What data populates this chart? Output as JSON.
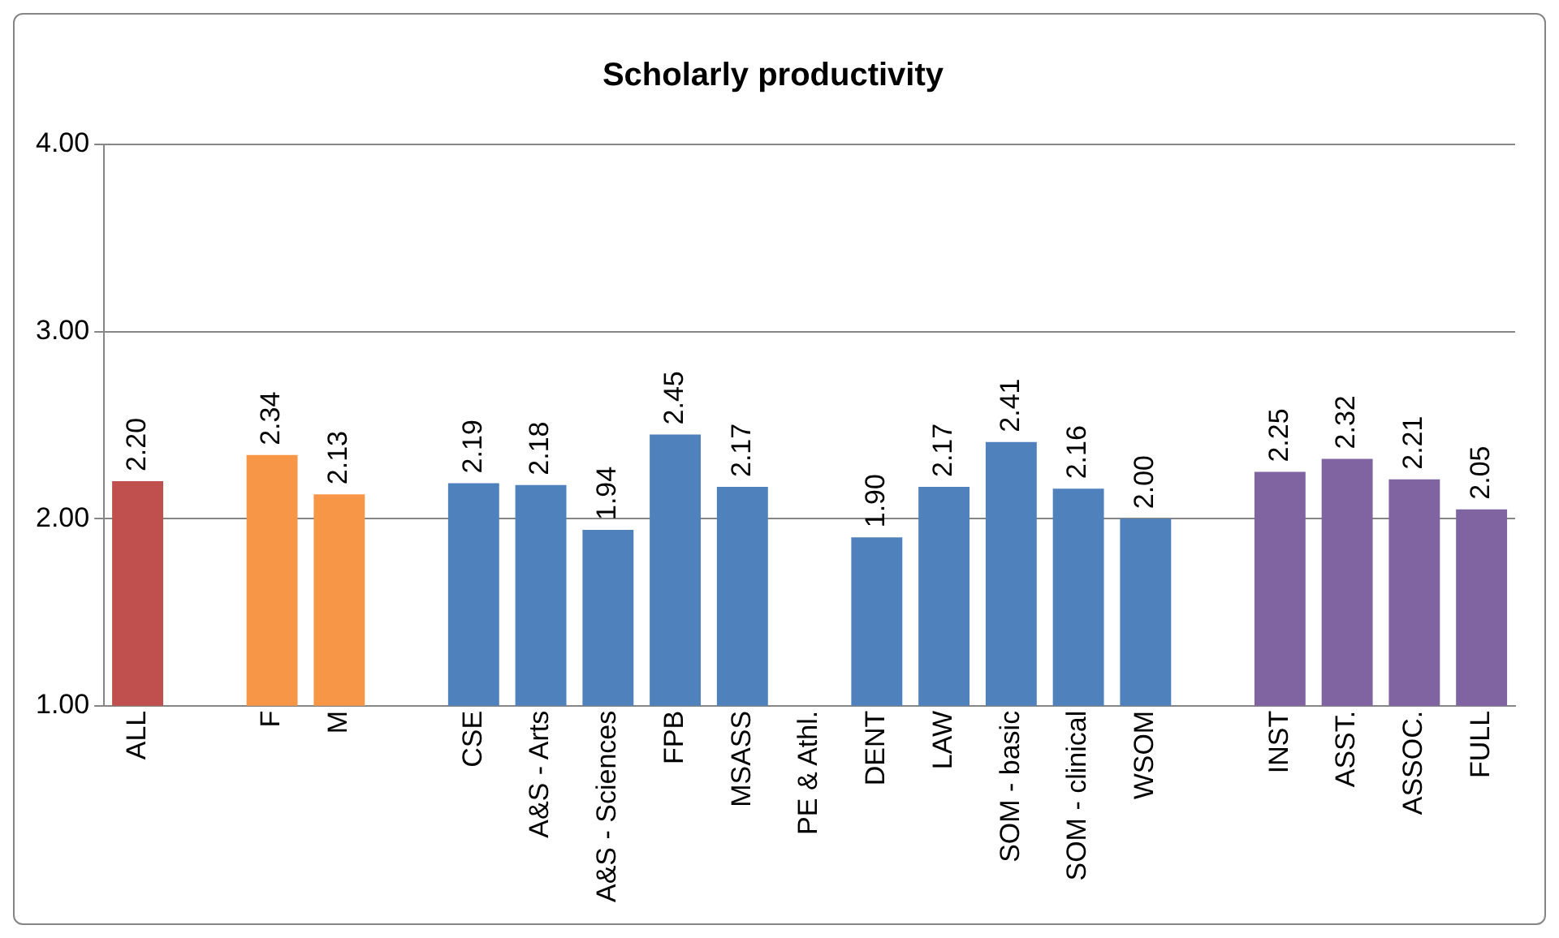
{
  "chart_data": {
    "type": "bar",
    "title": "Scholarly productivity",
    "categories": [
      "ALL",
      null,
      "F",
      "M",
      null,
      "CSE",
      "A&S - Arts",
      "A&S - Sciences",
      "FPB",
      "MSASS",
      "PE & Athl.",
      "DENT",
      "LAW",
      "SOM - basic",
      "SOM - clinical",
      "WSOM",
      null,
      "INST",
      "ASST.",
      "ASSOC.",
      "FULL"
    ],
    "values": [
      2.2,
      null,
      2.34,
      2.13,
      null,
      2.19,
      2.18,
      1.94,
      2.45,
      2.17,
      null,
      1.9,
      2.17,
      2.41,
      2.16,
      2.0,
      null,
      2.25,
      2.32,
      2.21,
      2.05
    ],
    "value_labels": [
      "2.20",
      null,
      "2.34",
      "2.13",
      null,
      "2.19",
      "2.18",
      "1.94",
      "2.45",
      "2.17",
      null,
      "1.90",
      "2.17",
      "2.41",
      "2.16",
      "2.00",
      null,
      "2.25",
      "2.32",
      "2.21",
      "2.05"
    ],
    "colors": [
      "#c0504d",
      "#c0504d",
      "#f79646",
      "#f79646",
      "#4f81bd",
      "#4f81bd",
      "#4f81bd",
      "#4f81bd",
      "#4f81bd",
      "#4f81bd",
      "#4f81bd",
      "#4f81bd",
      "#4f81bd",
      "#4f81bd",
      "#4f81bd",
      "#4f81bd",
      "#8064a2",
      "#8064a2",
      "#8064a2",
      "#8064a2",
      "#8064a2"
    ],
    "ylim": [
      1,
      4
    ],
    "yticks": [
      {
        "value": 1,
        "label": "1.00"
      },
      {
        "value": 2,
        "label": "2.00"
      },
      {
        "value": 3,
        "label": "3.00"
      },
      {
        "value": 4,
        "label": "4.00"
      }
    ],
    "grid": "y",
    "legend": false
  }
}
